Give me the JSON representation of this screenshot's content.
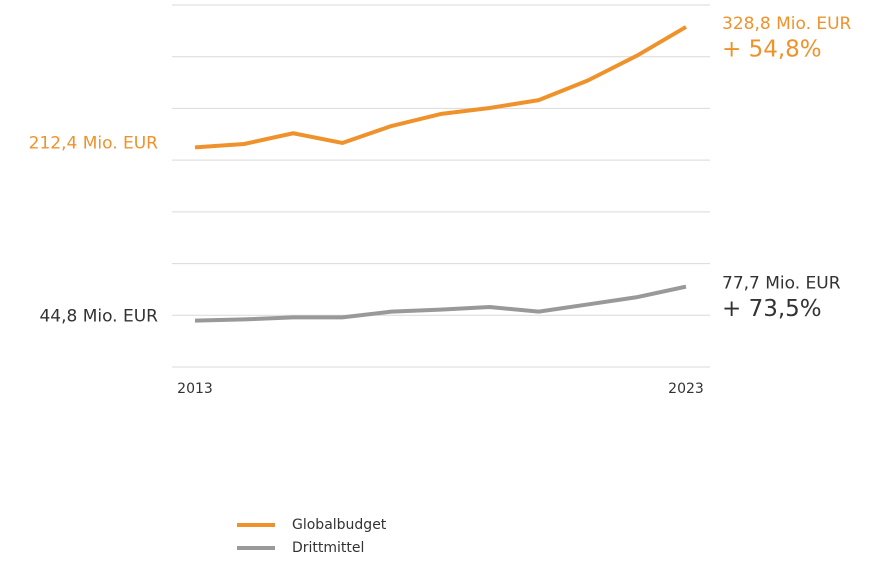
{
  "chart_data": {
    "type": "line",
    "categories": [
      "2013",
      null,
      null,
      null,
      null,
      null,
      null,
      null,
      null,
      null,
      "2023"
    ],
    "series": [
      {
        "name": "Globalbudget",
        "color": "#f0922b",
        "values": [
          212.4,
          215.6,
          226,
          216.6,
          233,
          244.6,
          250.4,
          258,
          277,
          301,
          328.8
        ],
        "value_labels": [
          "212,4 Mio. EUR",
          null,
          null,
          null,
          null,
          null,
          null,
          null,
          null,
          null,
          "328,8 Mio. EUR"
        ],
        "change_label": "+ 54,8%"
      },
      {
        "name": "Drittmittel",
        "color": "#999999",
        "values": [
          44.8,
          46,
          48,
          48,
          53.5,
          55.5,
          58,
          53.5,
          60.5,
          67.5,
          77.7
        ],
        "value_labels": [
          "44,8 Mio. EUR",
          null,
          null,
          null,
          null,
          null,
          null,
          null,
          null,
          null,
          "77,7 Mio. EUR"
        ],
        "change_label": "+ 73,5%"
      }
    ],
    "ylim": [
      0,
      350
    ],
    "yticks": [
      0,
      50,
      100,
      150,
      200,
      250,
      300,
      350
    ],
    "grid": true,
    "legend": "bottom"
  }
}
